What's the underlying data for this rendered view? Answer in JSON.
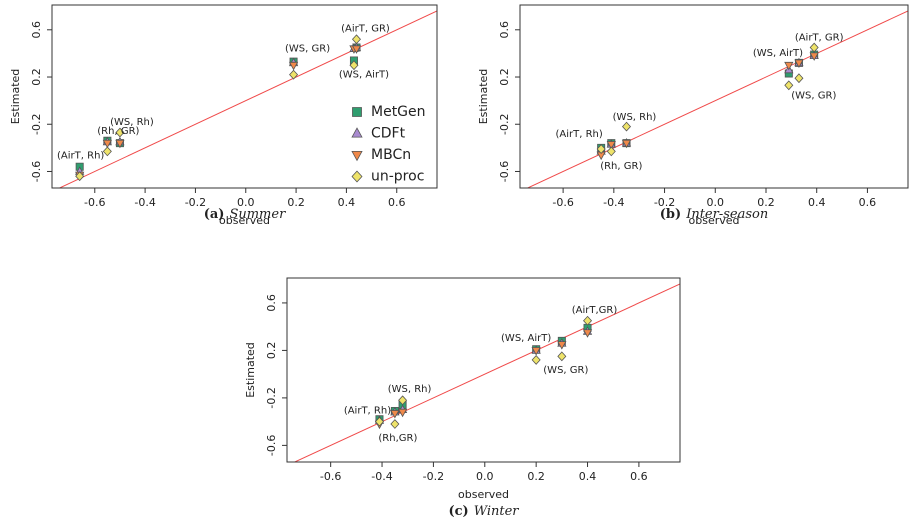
{
  "chart_data": [
    {
      "type": "scatter",
      "caption": {
        "label": "(a)",
        "text": "Summer"
      },
      "xlabel": "observed",
      "ylabel": "Estimated",
      "xlim": [
        -0.77,
        0.76
      ],
      "ylim": [
        -0.74,
        0.81
      ],
      "xticks": [
        -0.6,
        -0.4,
        -0.2,
        {
          "value": 0,
          "label": "0.0"
        },
        0.2,
        0.4,
        0.6
      ],
      "yticks": [
        -0.6,
        -0.2,
        0.2,
        0.6
      ],
      "diagonal": true,
      "diagonal_color": "#f04a4a",
      "legend": "lower right",
      "x": [
        -0.66,
        -0.55,
        -0.5,
        0.19,
        0.43,
        0.44
      ],
      "point_labels": [
        "(AirT, Rh)",
        "(Rh, GR)",
        "(WS, Rh)",
        "(WS, GR)",
        "(WS, AirT)",
        "(AirT, GR)"
      ],
      "series": [
        {
          "name": "MetGen",
          "color": "#2f9e6f",
          "marker": "square",
          "values": [
            -0.56,
            -0.34,
            -0.36,
            0.33,
            0.34,
            0.45
          ]
        },
        {
          "name": "CDFt",
          "color": "#a98bd0",
          "marker": "triangle-up",
          "values": [
            -0.6,
            -0.35,
            -0.35,
            0.32,
            0.44,
            0.45
          ]
        },
        {
          "name": "MBCn",
          "color": "#f0894a",
          "marker": "triangle-down",
          "values": [
            -0.63,
            -0.36,
            -0.36,
            0.3,
            0.44,
            0.44
          ]
        },
        {
          "name": "un-proc",
          "color": "#eee36a",
          "marker": "diamond",
          "values": [
            -0.64,
            -0.43,
            -0.27,
            0.22,
            0.3,
            0.52
          ]
        }
      ]
    },
    {
      "type": "scatter",
      "caption": {
        "label": "(b)",
        "text": "Inter-season"
      },
      "xlabel": "observed",
      "ylabel": "Estimated",
      "xlim": [
        -0.77,
        0.76
      ],
      "ylim": [
        -0.74,
        0.81
      ],
      "xticks": [
        -0.6,
        -0.4,
        -0.2,
        {
          "value": 0,
          "label": "0.0"
        },
        0.2,
        0.4,
        0.6
      ],
      "yticks": [
        -0.6,
        -0.2,
        0.2,
        0.6
      ],
      "diagonal": true,
      "diagonal_color": "#f04a4a",
      "x": [
        -0.45,
        -0.41,
        -0.35,
        0.29,
        0.33,
        0.39
      ],
      "point_labels": [
        "(AirT, Rh)",
        "(Rh, GR)",
        "(WS, Rh)",
        "(WS, GR)",
        "(WS, AirT)",
        "(AirT, GR)"
      ],
      "series": [
        {
          "name": "MetGen",
          "color": "#2f9e6f",
          "marker": "square",
          "values": [
            -0.4,
            -0.36,
            -0.36,
            0.23,
            0.32,
            0.39
          ]
        },
        {
          "name": "CDFt",
          "color": "#a98bd0",
          "marker": "triangle-up",
          "values": [
            -0.43,
            -0.37,
            -0.36,
            0.26,
            0.32,
            0.38
          ]
        },
        {
          "name": "MBCn",
          "color": "#f0894a",
          "marker": "triangle-down",
          "values": [
            -0.46,
            -0.37,
            -0.36,
            0.3,
            0.32,
            0.38
          ]
        },
        {
          "name": "un-proc",
          "color": "#eee36a",
          "marker": "diamond",
          "values": [
            -0.41,
            -0.43,
            -0.22,
            0.13,
            0.19,
            0.45
          ]
        }
      ]
    },
    {
      "type": "scatter",
      "caption": {
        "label": "(c)",
        "text": "Winter"
      },
      "xlabel": "observed",
      "ylabel": "Estimated",
      "xlim": [
        -0.77,
        0.76
      ],
      "ylim": [
        -0.74,
        0.81
      ],
      "xticks": [
        -0.6,
        -0.4,
        -0.2,
        {
          "value": 0,
          "label": "0.0"
        },
        0.2,
        0.4,
        0.6
      ],
      "yticks": [
        -0.6,
        -0.2,
        0.2,
        0.6
      ],
      "diagonal": true,
      "diagonal_color": "#f04a4a",
      "x": [
        -0.41,
        -0.35,
        -0.32,
        0.2,
        0.3,
        0.4
      ],
      "point_labels": [
        "(AirT, Rh)",
        "(Rh,GR)",
        "(WS, Rh)",
        "(WS, AirT)",
        "(WS, GR)",
        "(AirT,GR)"
      ],
      "series": [
        {
          "name": "MetGen",
          "color": "#2f9e6f",
          "marker": "square",
          "values": [
            -0.38,
            -0.31,
            -0.26,
            0.21,
            0.28,
            0.39
          ]
        },
        {
          "name": "CDFt",
          "color": "#a98bd0",
          "marker": "triangle-up",
          "values": [
            -0.39,
            -0.32,
            -0.3,
            0.2,
            0.26,
            0.36
          ]
        },
        {
          "name": "MBCn",
          "color": "#f0894a",
          "marker": "triangle-down",
          "values": [
            -0.42,
            -0.33,
            -0.32,
            0.2,
            0.25,
            0.35
          ]
        },
        {
          "name": "un-proc",
          "color": "#eee36a",
          "marker": "diamond",
          "values": [
            -0.4,
            -0.42,
            -0.22,
            0.12,
            0.15,
            0.45
          ]
        }
      ]
    }
  ]
}
